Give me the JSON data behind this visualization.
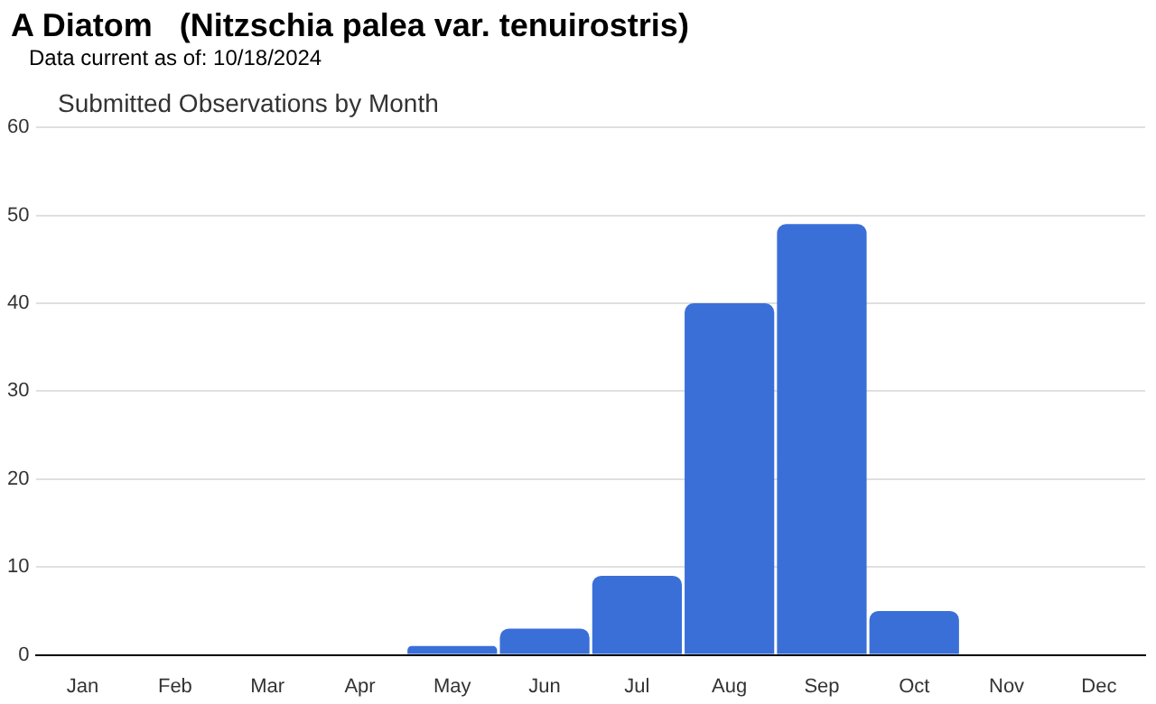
{
  "chart_data": {
    "type": "bar",
    "title": "A Diatom   (Nitzschia palea var. tenuirostris)",
    "subtitle": "Data current as of: 10/18/2024",
    "annotations": [
      "Submitted Observations by Month"
    ],
    "categories": [
      "Jan",
      "Feb",
      "Mar",
      "Apr",
      "May",
      "Jun",
      "Jul",
      "Aug",
      "Sep",
      "Oct",
      "Nov",
      "Dec"
    ],
    "values": [
      0,
      0,
      0,
      0,
      1,
      3,
      9,
      40,
      49,
      5,
      0,
      0
    ],
    "color": "#3a6fd8",
    "ylim": [
      0,
      60
    ],
    "yticks": [
      0,
      10,
      20,
      30,
      40,
      50,
      60
    ],
    "grid": "y",
    "legend": false
  }
}
